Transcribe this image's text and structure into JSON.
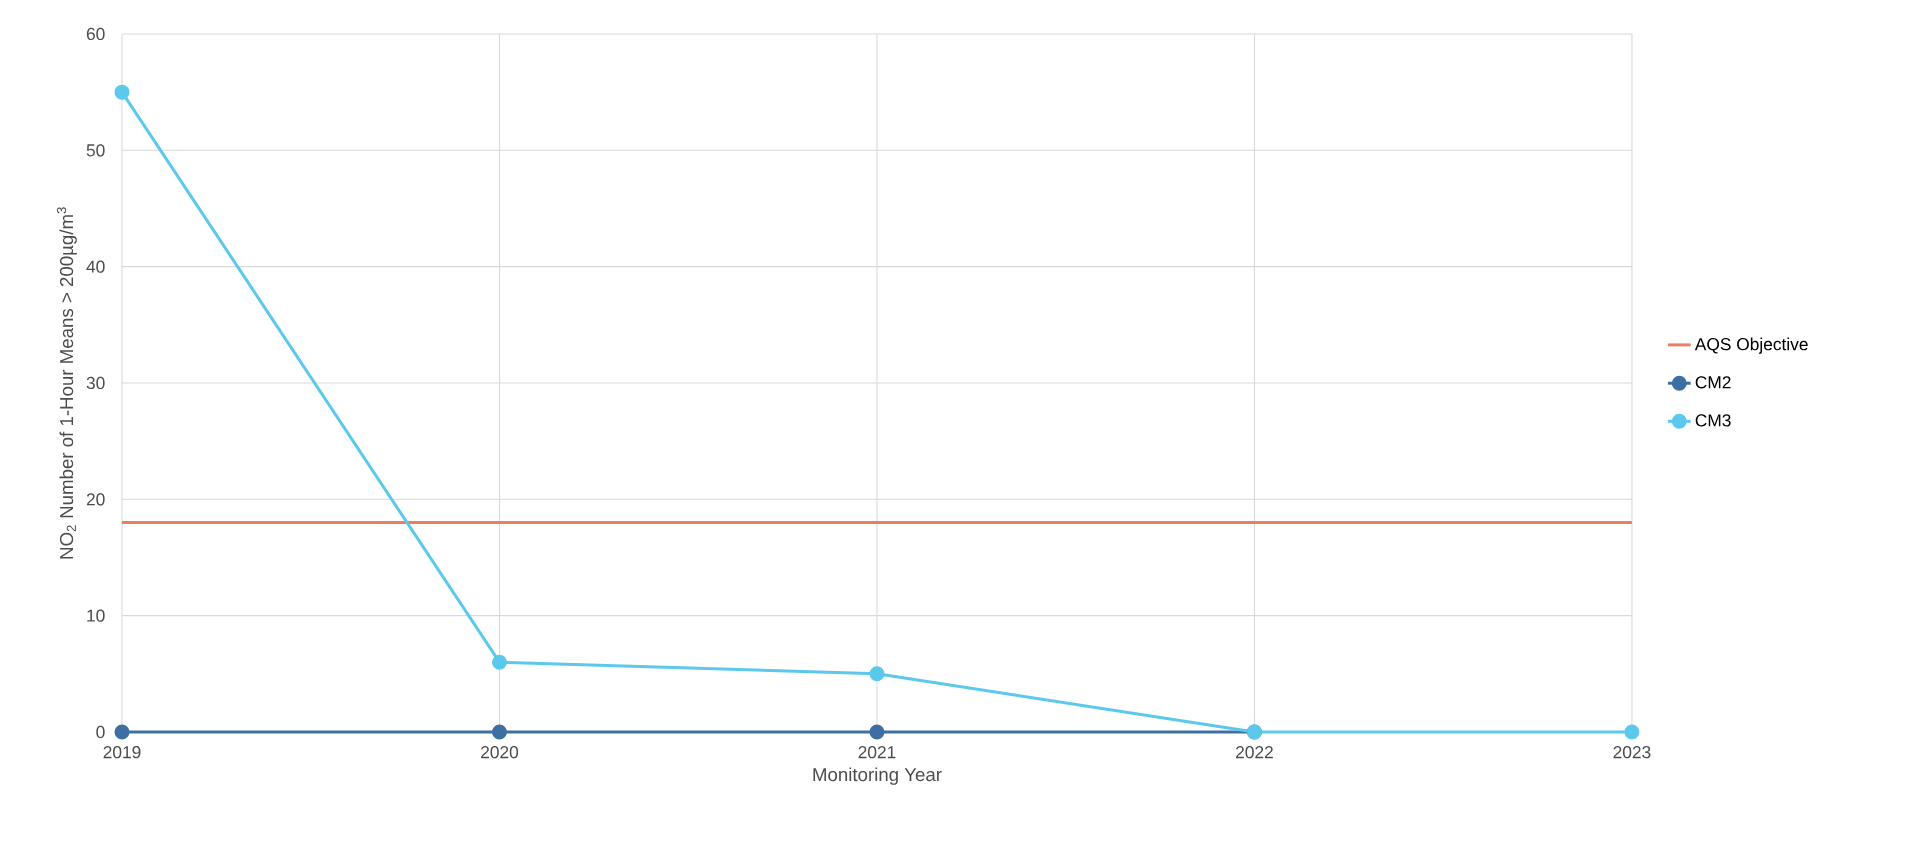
{
  "chart_data": {
    "type": "line",
    "xlabel": "Monitoring Year",
    "ylabel": "NO$_{2}$ Number of 1-Hour Means > 200µg/m$^{3}$",
    "x": [
      2019,
      2020,
      2021,
      2022,
      2023
    ],
    "series": [
      {
        "name": "AQS Objective",
        "color": "#ed7d62",
        "marker": "none",
        "values": [
          18,
          18,
          18,
          18,
          18
        ]
      },
      {
        "name": "CM2",
        "color": "#3e6fa3",
        "marker": "circle",
        "values": [
          0,
          0,
          0,
          0,
          null
        ]
      },
      {
        "name": "CM3",
        "color": "#5bc8ec",
        "marker": "circle",
        "values": [
          55,
          6,
          5,
          0,
          0
        ]
      }
    ],
    "xlim": [
      2019,
      2023
    ],
    "xticks": [
      2019,
      2020,
      2021,
      2022,
      2023
    ],
    "ylim": [
      0,
      60
    ],
    "yticks": [
      0,
      10,
      20,
      30,
      40,
      50,
      60
    ],
    "grid": true,
    "legend": "right"
  }
}
